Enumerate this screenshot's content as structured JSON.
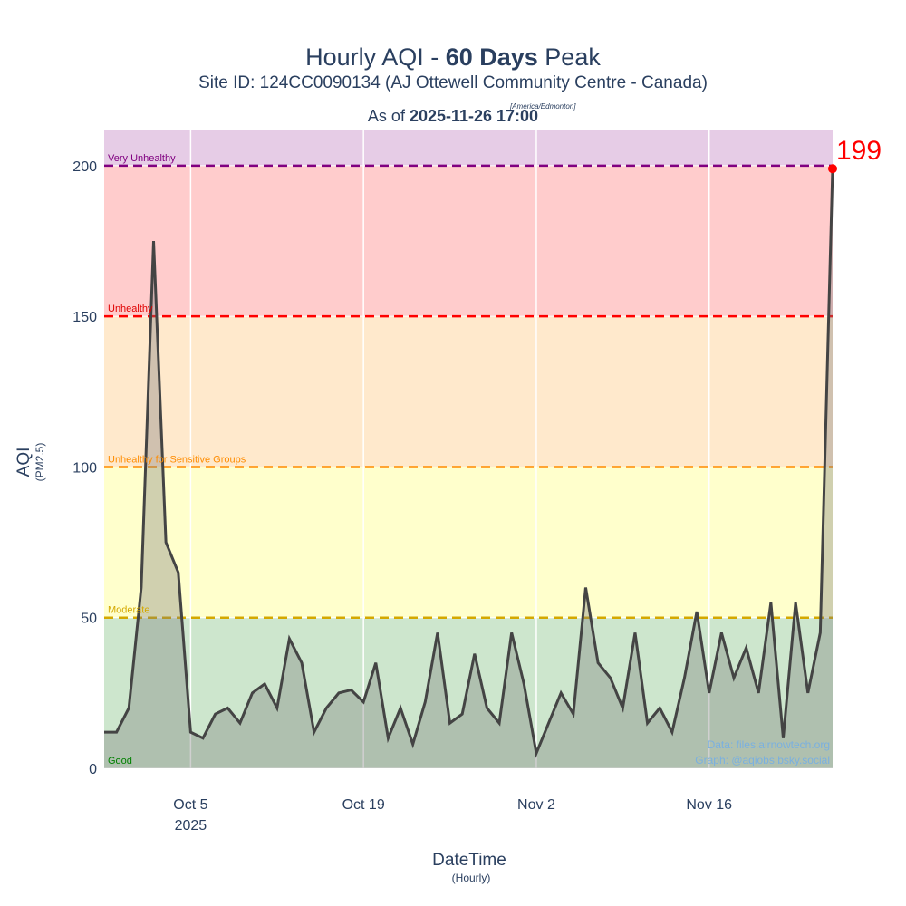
{
  "chart_data": {
    "type": "line",
    "title_pre": "Hourly AQI - ",
    "title_bold": "60 Days",
    "title_post": " Peak",
    "subtitle": "Site ID: 124CC0090134 (AJ Ottewell Community Centre - Canada)",
    "asof_pre": "As of ",
    "asof_bold": "2025-11-26 17:00",
    "asof_tz": "[America/Edmonton]",
    "ylabel": "AQI",
    "ylabel_sub": "(PM2.5)",
    "xlabel": "DateTime",
    "xlabel_sub": "(Hourly)",
    "credits": [
      "Data: files.airnowtech.org",
      "Graph: @aqiobs.bsky.social"
    ],
    "bands": [
      {
        "name": "Good",
        "from": 0,
        "to": 50,
        "color": "#cde6cd",
        "line_color": null,
        "label_color": "#008000"
      },
      {
        "name": "Moderate",
        "from": 50,
        "to": 100,
        "color": "#ffffcc",
        "line_color": "#d4a800",
        "label_color": "#d4a800"
      },
      {
        "name": "Unhealthy for Sensitive Groups",
        "from": 100,
        "to": 150,
        "color": "#ffe9cc",
        "line_color": "#ff8c00",
        "label_color": "#ff8c00"
      },
      {
        "name": "Unhealthy",
        "from": 150,
        "to": 200,
        "color": "#ffcccc",
        "line_color": "#ff0000",
        "label_color": "#e00000"
      },
      {
        "name": "Very Unhealthy",
        "from": 200,
        "to": 212,
        "color": "#e6cce6",
        "line_color": "#800080",
        "label_color": "#800080"
      }
    ],
    "ylim": [
      0,
      212
    ],
    "yticks": [
      0,
      50,
      100,
      150,
      200
    ],
    "xlim": [
      "2025-09-28",
      "2025-11-26"
    ],
    "xticks": [
      {
        "value": "2025-10-05",
        "label": "Oct 5"
      },
      {
        "value": "2025-10-19",
        "label": "Oct 19"
      },
      {
        "value": "2025-11-02",
        "label": "Nov 2"
      },
      {
        "value": "2025-11-16",
        "label": "Nov 16"
      }
    ],
    "x_year_label": "2025",
    "grid": true,
    "x": [
      "2025-09-28",
      "2025-09-29",
      "2025-09-30",
      "2025-10-01",
      "2025-10-02",
      "2025-10-03",
      "2025-10-04",
      "2025-10-05",
      "2025-10-06",
      "2025-10-07",
      "2025-10-08",
      "2025-10-09",
      "2025-10-10",
      "2025-10-11",
      "2025-10-12",
      "2025-10-13",
      "2025-10-14",
      "2025-10-15",
      "2025-10-16",
      "2025-10-17",
      "2025-10-18",
      "2025-10-19",
      "2025-10-20",
      "2025-10-21",
      "2025-10-22",
      "2025-10-23",
      "2025-10-24",
      "2025-10-25",
      "2025-10-26",
      "2025-10-27",
      "2025-10-28",
      "2025-10-29",
      "2025-10-30",
      "2025-10-31",
      "2025-11-01",
      "2025-11-02",
      "2025-11-03",
      "2025-11-04",
      "2025-11-05",
      "2025-11-06",
      "2025-11-07",
      "2025-11-08",
      "2025-11-09",
      "2025-11-10",
      "2025-11-11",
      "2025-11-12",
      "2025-11-13",
      "2025-11-14",
      "2025-11-15",
      "2025-11-16",
      "2025-11-17",
      "2025-11-18",
      "2025-11-19",
      "2025-11-20",
      "2025-11-21",
      "2025-11-22",
      "2025-11-23",
      "2025-11-24",
      "2025-11-25",
      "2025-11-26"
    ],
    "series": [
      {
        "name": "AQI",
        "color": "#444444",
        "fill": "rgba(120,120,120,0.35)",
        "values": [
          12,
          12,
          20,
          60,
          175,
          75,
          65,
          12,
          10,
          18,
          20,
          15,
          25,
          28,
          20,
          43,
          35,
          12,
          20,
          25,
          26,
          22,
          35,
          10,
          20,
          8,
          22,
          45,
          15,
          18,
          38,
          20,
          15,
          45,
          28,
          5,
          15,
          25,
          18,
          60,
          35,
          30,
          20,
          45,
          15,
          20,
          12,
          30,
          52,
          25,
          45,
          30,
          40,
          25,
          55,
          10,
          55,
          25,
          45,
          199
        ]
      }
    ],
    "peak_color": "#ff0000"
  }
}
